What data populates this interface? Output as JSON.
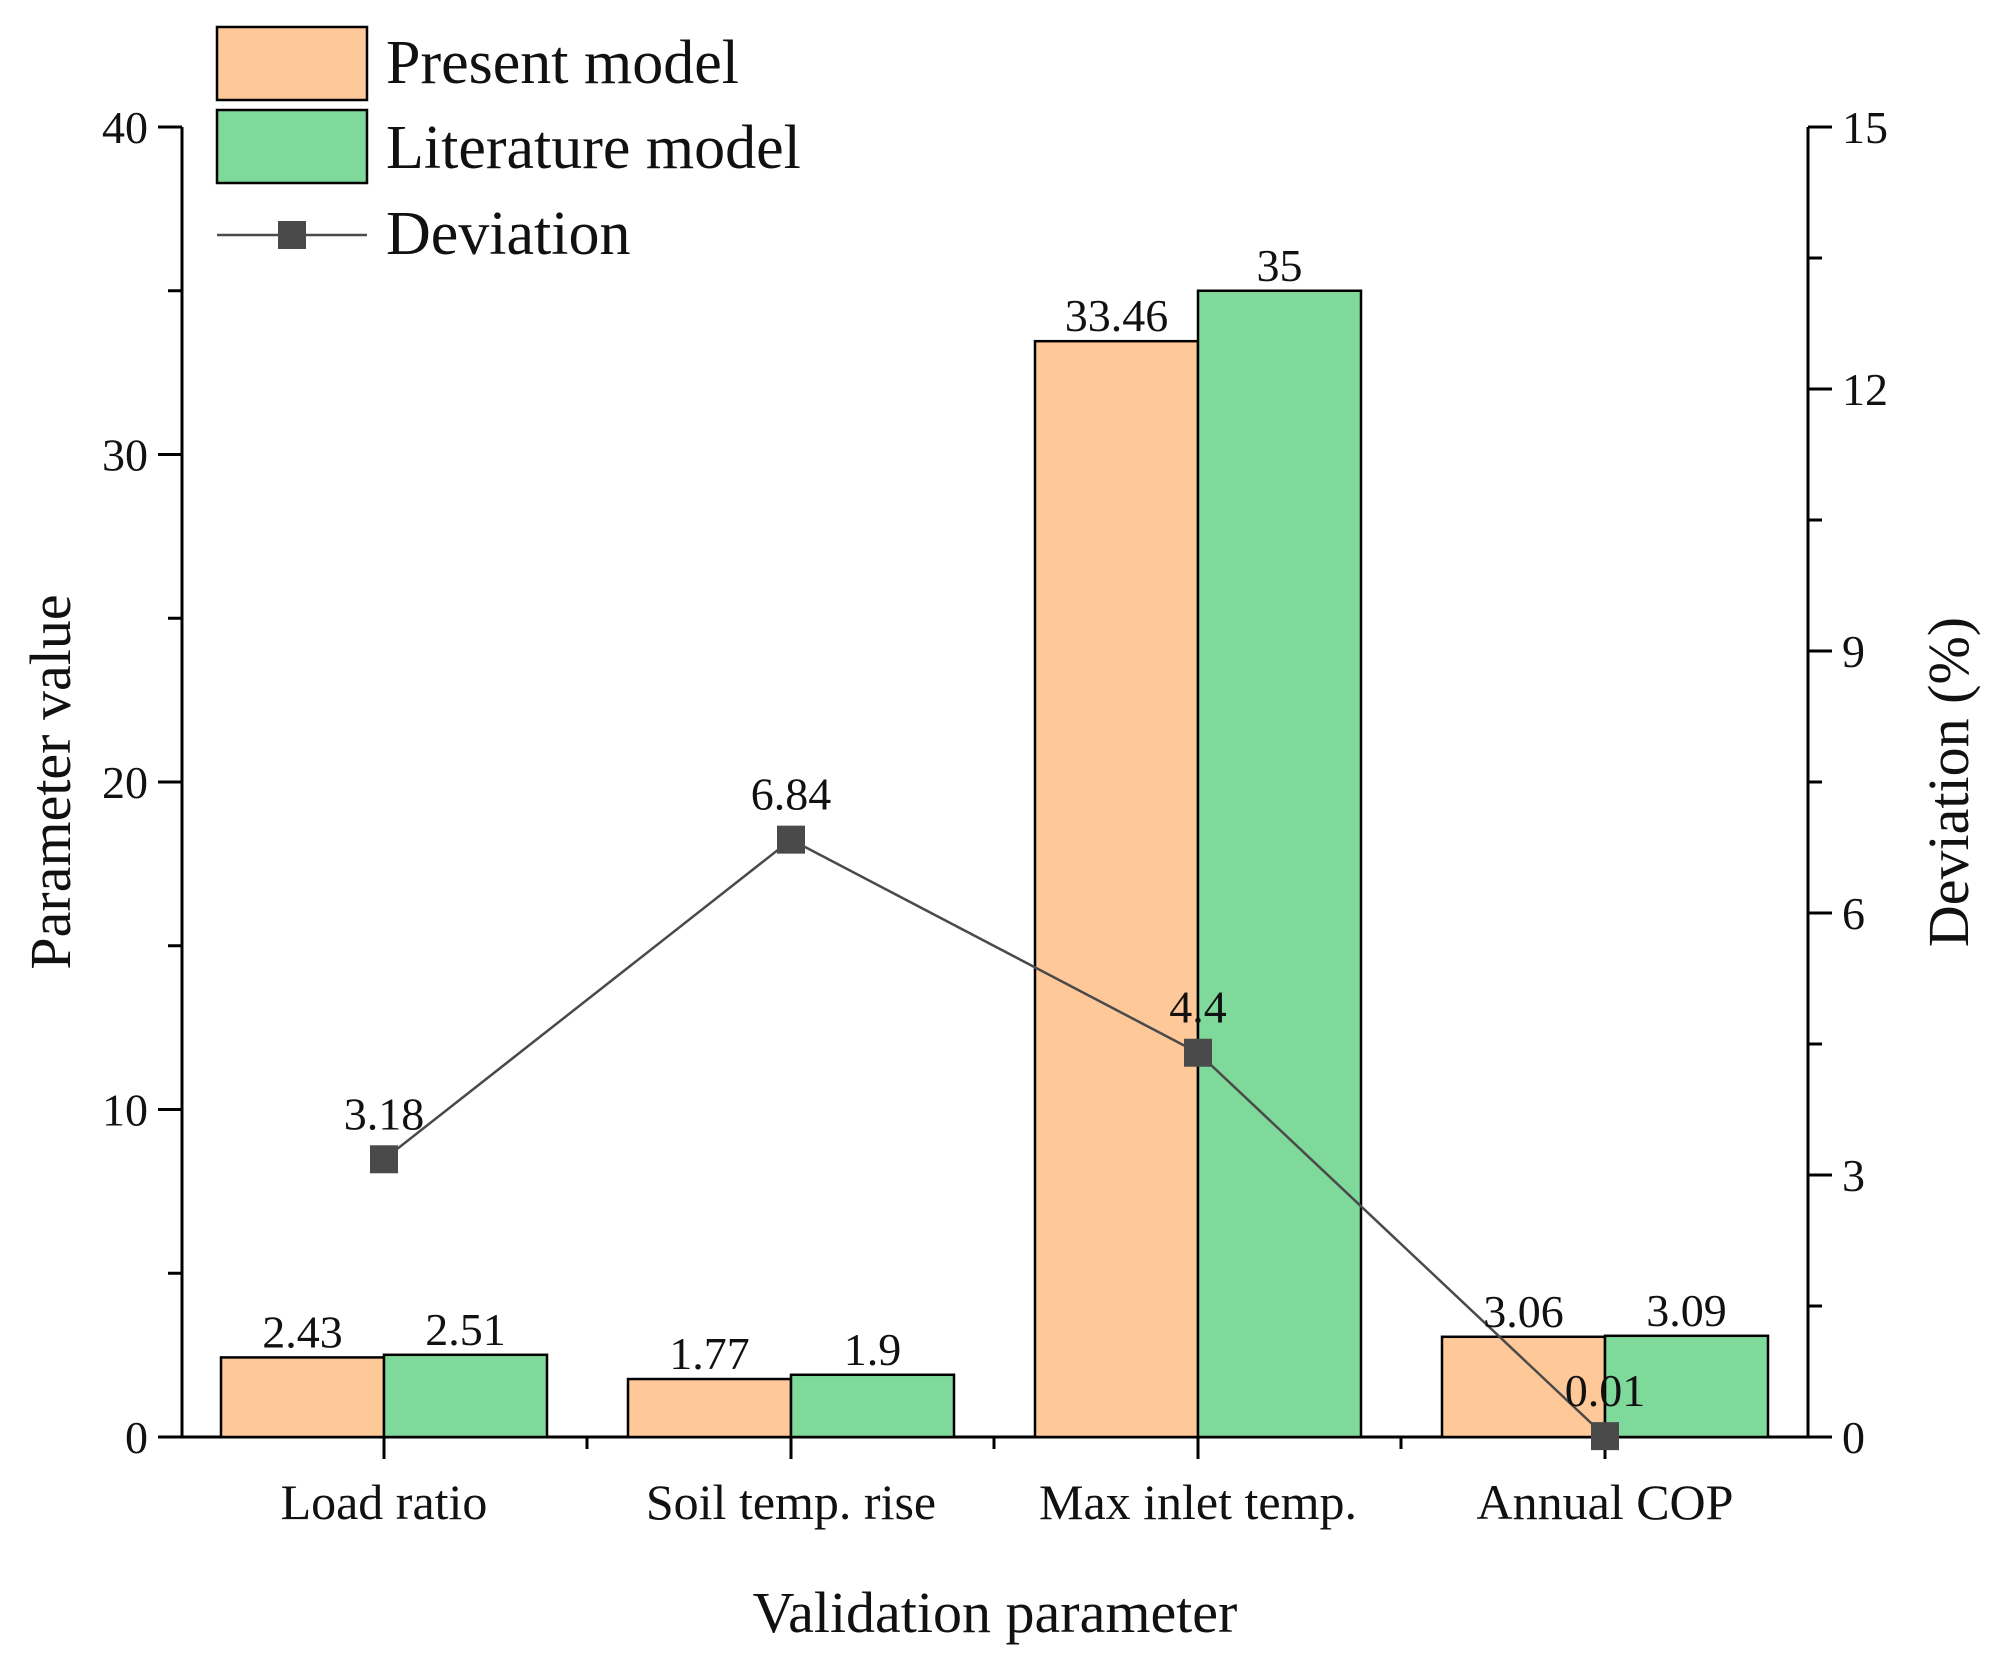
{
  "chart_data": {
    "type": "bar",
    "title": "",
    "xlabel": "Validation parameter",
    "ylabel": "Parameter value",
    "y2label": "Deviation (%)",
    "categories": [
      "Load ratio",
      "Soil temp. rise",
      "Max inlet temp.",
      "Annual COP"
    ],
    "ylim": [
      0,
      40
    ],
    "yticks": [
      "0",
      "10",
      "20",
      "30",
      "40"
    ],
    "y2lim": [
      0,
      15
    ],
    "y2ticks": [
      "0",
      "3",
      "6",
      "9",
      "12",
      "15"
    ],
    "series": [
      {
        "name": "Present model",
        "type": "bar",
        "color": "#FFC899",
        "values": [
          2.43,
          1.77,
          33.46,
          3.06
        ],
        "labels": [
          "2.43",
          "1.77",
          "33.46",
          "3.06"
        ]
      },
      {
        "name": "Literature model",
        "type": "bar",
        "color": "#7FD99A",
        "values": [
          2.51,
          1.9,
          35,
          3.09
        ],
        "labels": [
          "2.51",
          "1.9",
          "35",
          "3.09"
        ]
      },
      {
        "name": "Deviation",
        "type": "line",
        "axis": "right",
        "color": "#4A4A4A",
        "values": [
          3.18,
          6.84,
          4.4,
          0.01
        ],
        "labels": [
          "3.18",
          "6.84",
          "4.4",
          "0.01"
        ]
      }
    ],
    "legend": "top-left",
    "grid": false
  }
}
